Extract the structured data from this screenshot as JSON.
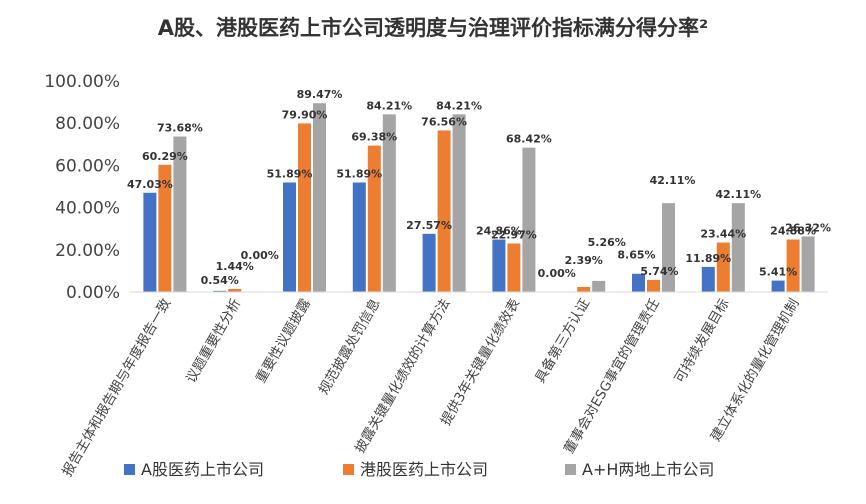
{
  "chart_data": {
    "type": "bar",
    "title": "A股、港股医药上市公司透明度与治理评价指标满分得分率²",
    "xlabel": "",
    "ylabel": "",
    "ylim": [
      0,
      100
    ],
    "yticks": [
      "0.00%",
      "20.00%",
      "40.00%",
      "60.00%",
      "80.00%",
      "100.00%"
    ],
    "grid": false,
    "legend_position": "bottom",
    "categories": [
      "报告主体和报告期与年度报告一致",
      "议题重要性分析",
      "重要性议题披露",
      "规范披露处罚信息",
      "披露关键量化绩效的计算方法",
      "提供3年关键量化绩效表",
      "具备第三方认证",
      "董事会对ESG事宜的管理责任",
      "可持续发展目标",
      "建立体系化的量化管理机制"
    ],
    "series": [
      {
        "name": "A股医药上市公司",
        "color": "#4472C4",
        "values": [
          47.03,
          0.54,
          51.89,
          51.89,
          27.57,
          24.86,
          0.0,
          8.65,
          11.89,
          5.41
        ],
        "labels": [
          "47.03%",
          "0.54%",
          "51.89%",
          "51.89%",
          "27.57%",
          "24.86%",
          "0.00%",
          "8.65%",
          "11.89%",
          "5.41%"
        ]
      },
      {
        "name": "港股医药上市公司",
        "color": "#ED7D31",
        "values": [
          60.29,
          1.44,
          79.9,
          69.38,
          76.56,
          22.97,
          2.39,
          5.74,
          23.44,
          24.88
        ],
        "labels": [
          "60.29%",
          "1.44%",
          "79.90%",
          "69.38%",
          "76.56%",
          "22.97%",
          "2.39%",
          "5.74%",
          "23.44%",
          "24.88%"
        ]
      },
      {
        "name": "A+H两地上市公司",
        "color": "#A5A5A5",
        "values": [
          73.68,
          0.0,
          89.47,
          84.21,
          84.21,
          68.42,
          5.26,
          42.11,
          42.11,
          26.32
        ],
        "labels": [
          "73.68%",
          "0.00%",
          "89.47%",
          "84.21%",
          "84.21%",
          "68.42%",
          "5.26%",
          "42.11%",
          "42.11%",
          "26.32%"
        ]
      }
    ]
  }
}
